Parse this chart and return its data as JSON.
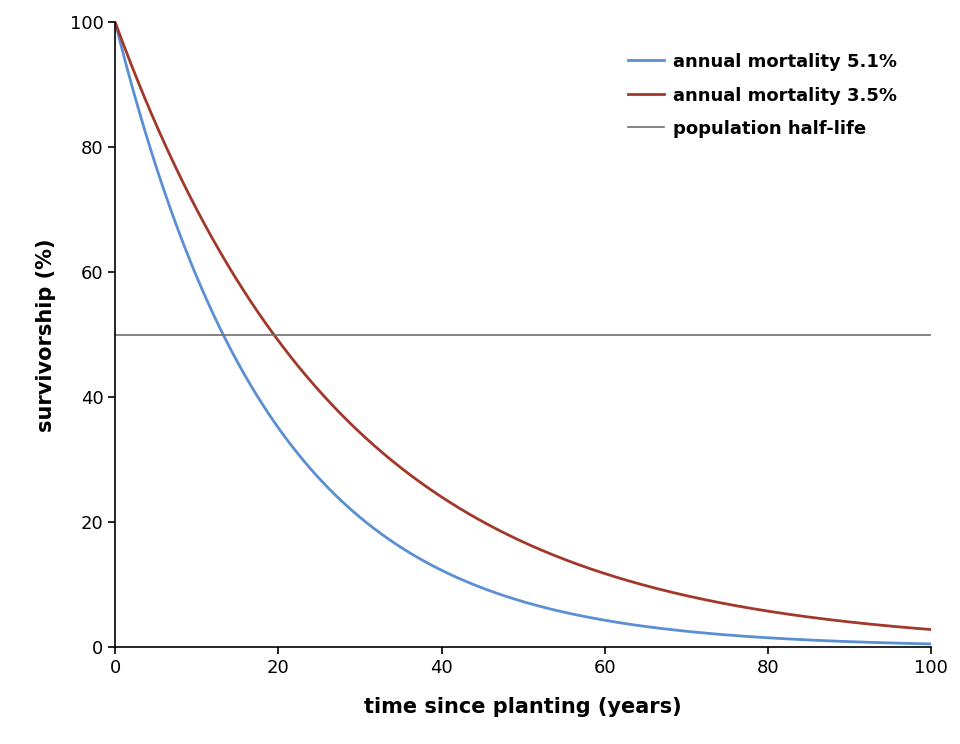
{
  "title": "",
  "xlabel": "time since planting (years)",
  "ylabel": "survivorship (%)",
  "xlim": [
    0,
    100
  ],
  "ylim": [
    0,
    100
  ],
  "xticks": [
    0,
    20,
    40,
    60,
    80,
    100
  ],
  "yticks": [
    0,
    20,
    40,
    60,
    80,
    100
  ],
  "mortality_high": 0.051,
  "mortality_low": 0.035,
  "half_life_y": 50,
  "color_high": "#5b8fd4",
  "color_low": "#a0392a",
  "color_halflife": "#6e6e6e",
  "line_width": 2.0,
  "legend_labels": [
    "annual mortality 5.1%",
    "annual mortality 3.5%",
    "population half-life"
  ],
  "xlabel_fontsize": 15,
  "ylabel_fontsize": 15,
  "tick_fontsize": 13,
  "legend_fontsize": 13,
  "background_color": "#ffffff"
}
